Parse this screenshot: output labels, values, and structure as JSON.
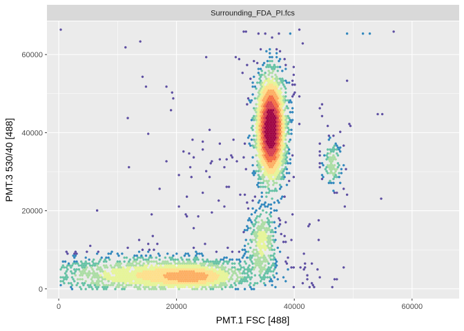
{
  "chart_data": {
    "type": "heatmap",
    "subtype": "hexbin-density",
    "facet_label": "Surrounding_FDA_PI.fcs",
    "xlabel": "PMT.1 FSC [488]",
    "ylabel": "PMT.3 530/40 [488]",
    "xlim": [
      -2000,
      68000
    ],
    "ylim": [
      -2500,
      68500
    ],
    "x_ticks": [
      0,
      20000,
      40000,
      60000
    ],
    "x_tick_labels": [
      "0",
      "20000",
      "40000",
      "60000"
    ],
    "y_ticks": [
      0,
      20000,
      40000,
      60000
    ],
    "y_tick_labels": [
      "0",
      "20000",
      "40000",
      "60000"
    ],
    "grid": true,
    "legend": "none",
    "colors": {
      "panel_bg": "#ebebeb",
      "strip_bg": "#d9d9d9",
      "grid": "#ffffff",
      "palette": [
        "#5e4fa2",
        "#3288bd",
        "#66c2a5",
        "#abdda4",
        "#e6f598",
        "#fee08b",
        "#fdae61",
        "#f46d43",
        "#d53e4f",
        "#9e0142"
      ]
    },
    "density_regions": [
      {
        "name": "debris band",
        "x_center": 16000,
        "y_center": 3500,
        "x_spread": 11000,
        "y_spread": 3000,
        "weight": 0.35
      },
      {
        "name": "debris core",
        "x_center": 23000,
        "y_center": 3000,
        "x_spread": 4000,
        "y_spread": 1800,
        "weight": 0.25
      },
      {
        "name": "main population",
        "x_center": 36000,
        "y_center": 41000,
        "x_spread": 1500,
        "y_spread": 8000,
        "weight": 1.0
      },
      {
        "name": "lower tail",
        "x_center": 34500,
        "y_center": 12000,
        "x_spread": 1500,
        "y_spread": 5000,
        "weight": 0.3
      },
      {
        "name": "right cluster",
        "x_center": 46500,
        "y_center": 32000,
        "x_spread": 1000,
        "y_spread": 3500,
        "weight": 0.25
      },
      {
        "name": "saturation row",
        "x_center": 48000,
        "y_center": 65500,
        "x_spread": 8000,
        "y_spread": 200,
        "weight": 0.08
      }
    ]
  }
}
